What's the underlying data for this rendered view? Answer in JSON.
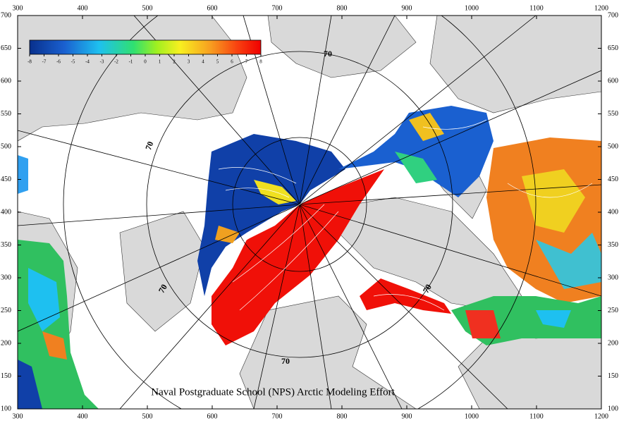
{
  "map": {
    "x_axis": {
      "lim": [
        300,
        1200
      ],
      "ticks": [
        300,
        400,
        500,
        600,
        700,
        800,
        900,
        1000,
        1100,
        1200
      ]
    },
    "y_axis": {
      "lim": [
        100,
        700
      ],
      "ticks": [
        100,
        150,
        200,
        250,
        300,
        350,
        400,
        450,
        500,
        550,
        600,
        650,
        700
      ]
    },
    "colorbar": {
      "lim": [
        -8,
        8
      ],
      "ticks": [
        -8,
        -7,
        -6,
        -5,
        -4,
        -3,
        -2,
        -1,
        0,
        1,
        2,
        3,
        4,
        5,
        6,
        7,
        8
      ]
    },
    "contour_labels": [
      "70",
      "70",
      "70",
      "70",
      "70"
    ],
    "credit": "Naval Postgraduate School (NPS) Arctic Modeling Effort"
  }
}
